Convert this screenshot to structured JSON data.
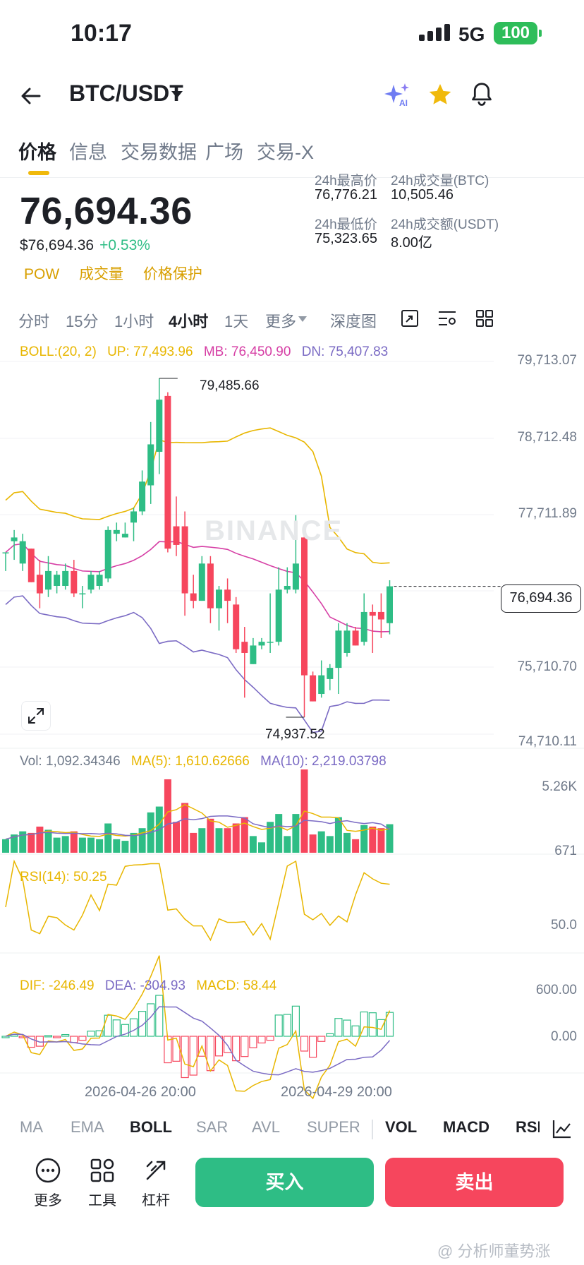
{
  "status_bar": {
    "time": "10:17",
    "network": "5G",
    "battery": "100"
  },
  "header": {
    "pair": "BTC/USDT",
    "icons": [
      "back-arrow-icon",
      "dropdown-caret-icon",
      "ai-sparkle-icon",
      "star-icon",
      "bell-icon"
    ]
  },
  "tabs": [
    "价格",
    "信息",
    "交易数据",
    "广场",
    "交易-X"
  ],
  "price": {
    "last": "76,694.36",
    "usd": "$76,694.36",
    "change": "+0.53%",
    "tags": [
      "POW",
      "成交量",
      "价格保护"
    ]
  },
  "stats": {
    "high_label": "24h最高价",
    "high": "76,776.21",
    "vol_btc_label": "24h成交量(BTC)",
    "vol_btc": "10,505.46",
    "low_label": "24h最低价",
    "low": "75,323.65",
    "vol_usdt_label": "24h成交额(USDT)",
    "vol_usdt": "8.00亿"
  },
  "intervals": [
    "分时",
    "15分",
    "1小时",
    "4小时",
    "1天",
    "更多",
    "深度图"
  ],
  "boll": {
    "label": "BOLL:(20, 2)",
    "up": "UP: 77,493.96",
    "mb": "MB: 76,450.90",
    "dn": "DN: 75,407.83"
  },
  "price_axis": [
    "79,713.07",
    "78,712.48",
    "77,711.89",
    "76,694.36",
    "75,710.70",
    "74,710.11"
  ],
  "annotations": {
    "high": "79,485.66",
    "low": "74,937.52",
    "watermark": "BINANCE"
  },
  "volume": {
    "vol": "Vol: 1,092.34346",
    "ma5": "MA(5): 1,610.62666",
    "ma10": "MA(10): 2,219.03798",
    "axis_top": "5.26K",
    "axis_bottom": "671"
  },
  "rsi": {
    "label": "RSI(14): 50.25",
    "axis": "50.0"
  },
  "macd": {
    "dif": "DIF: -246.49",
    "dea": "DEA: -304.93",
    "macd": "MACD: 58.44",
    "axis_top": "600.00",
    "axis_mid": "0.00"
  },
  "dates": [
    "2026-04-26 20:00",
    "2026-04-29 20:00"
  ],
  "indicators": [
    "MA",
    "EMA",
    "BOLL",
    "SAR",
    "AVL",
    "SUPER",
    "VOL",
    "MACD",
    "RSI"
  ],
  "bottom": {
    "more": "更多",
    "tools": "工具",
    "leverage": "杠杆",
    "buy": "买入",
    "sell": "卖出"
  },
  "footer_watermark": "@ 分析师董势涨",
  "colors": {
    "up": "#2ebd85",
    "down": "#f6465d",
    "accent": "#f0b90b",
    "boll_up": "#e8b600",
    "boll_mb": "#d63fa5",
    "boll_dn": "#7b6bc4"
  },
  "chart_data": {
    "type": "candlestick",
    "interval": "4小时",
    "candles": [
      {
        "o": 77150,
        "h": 77150,
        "l": 76900,
        "c": 77150
      },
      {
        "o": 77300,
        "h": 77450,
        "l": 77050,
        "c": 77350
      },
      {
        "o": 77000,
        "h": 77400,
        "l": 76900,
        "c": 77300
      },
      {
        "o": 77200,
        "h": 77200,
        "l": 76750,
        "c": 76750
      },
      {
        "o": 76850,
        "h": 77050,
        "l": 76400,
        "c": 76600
      },
      {
        "o": 76650,
        "h": 77100,
        "l": 76550,
        "c": 76900
      },
      {
        "o": 76700,
        "h": 76900,
        "l": 76600,
        "c": 76850
      },
      {
        "o": 76700,
        "h": 77000,
        "l": 76650,
        "c": 76900
      },
      {
        "o": 76900,
        "h": 77050,
        "l": 76550,
        "c": 76600
      },
      {
        "o": 76600,
        "h": 76700,
        "l": 76400,
        "c": 76600
      },
      {
        "o": 76650,
        "h": 76900,
        "l": 76600,
        "c": 76850
      },
      {
        "o": 76700,
        "h": 76900,
        "l": 76650,
        "c": 76850
      },
      {
        "o": 76800,
        "h": 77500,
        "l": 76750,
        "c": 77450
      },
      {
        "o": 77400,
        "h": 77550,
        "l": 77300,
        "c": 77450
      },
      {
        "o": 77350,
        "h": 77550,
        "l": 77350,
        "c": 77400
      },
      {
        "o": 77550,
        "h": 77750,
        "l": 77300,
        "c": 77700
      },
      {
        "o": 77700,
        "h": 78250,
        "l": 77650,
        "c": 78100
      },
      {
        "o": 78050,
        "h": 78900,
        "l": 77800,
        "c": 78600
      },
      {
        "o": 78500,
        "h": 79485.66,
        "l": 78200,
        "c": 79200
      },
      {
        "o": 79250,
        "h": 79300,
        "l": 77150,
        "c": 77200
      },
      {
        "o": 77500,
        "h": 77900,
        "l": 77100,
        "c": 77250
      },
      {
        "o": 77500,
        "h": 77700,
        "l": 76300,
        "c": 76600
      },
      {
        "o": 76600,
        "h": 76850,
        "l": 76400,
        "c": 76500
      },
      {
        "o": 76500,
        "h": 77100,
        "l": 76500,
        "c": 77000
      },
      {
        "o": 77000,
        "h": 77100,
        "l": 76200,
        "c": 76400
      },
      {
        "o": 76400,
        "h": 76700,
        "l": 76100,
        "c": 76650
      },
      {
        "o": 76650,
        "h": 76800,
        "l": 76200,
        "c": 76500
      },
      {
        "o": 76450,
        "h": 76550,
        "l": 75800,
        "c": 75850
      },
      {
        "o": 75950,
        "h": 76150,
        "l": 75200,
        "c": 75800
      },
      {
        "o": 75650,
        "h": 76000,
        "l": 75650,
        "c": 75900
      },
      {
        "o": 75900,
        "h": 76000,
        "l": 75850,
        "c": 75950
      },
      {
        "o": 75950,
        "h": 76600,
        "l": 75800,
        "c": 75950
      },
      {
        "o": 75950,
        "h": 76950,
        "l": 75900,
        "c": 76650
      },
      {
        "o": 76650,
        "h": 76950,
        "l": 76600,
        "c": 76700
      },
      {
        "o": 76650,
        "h": 77650,
        "l": 76600,
        "c": 77000
      },
      {
        "o": 77350,
        "h": 77400,
        "l": 74937.52,
        "c": 75500
      },
      {
        "o": 75500,
        "h": 75550,
        "l": 75150,
        "c": 75150
      },
      {
        "o": 75250,
        "h": 75700,
        "l": 75200,
        "c": 75500
      },
      {
        "o": 75450,
        "h": 75650,
        "l": 75300,
        "c": 75600
      },
      {
        "o": 75600,
        "h": 76200,
        "l": 75250,
        "c": 76100
      },
      {
        "o": 75800,
        "h": 76200,
        "l": 75750,
        "c": 76100
      },
      {
        "o": 76100,
        "h": 76150,
        "l": 75900,
        "c": 75900
      },
      {
        "o": 75950,
        "h": 76600,
        "l": 75900,
        "c": 76350
      },
      {
        "o": 76350,
        "h": 76450,
        "l": 75800,
        "c": 76300
      },
      {
        "o": 76350,
        "h": 76600,
        "l": 76000,
        "c": 76250
      },
      {
        "o": 76200,
        "h": 76776,
        "l": 76050,
        "c": 76694.36
      }
    ]
  }
}
